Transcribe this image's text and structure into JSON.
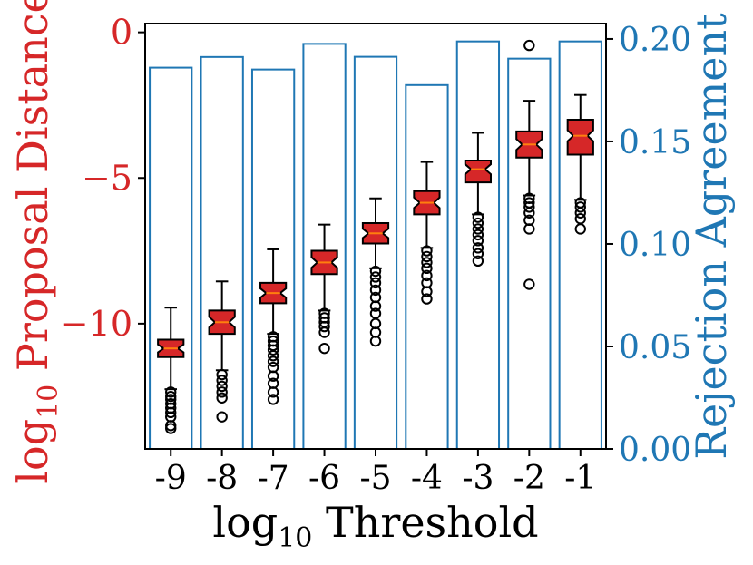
{
  "chart_data": {
    "type": "box",
    "x_label": {
      "base": "log",
      "sub": "10",
      "rest": " Threshold"
    },
    "y_left_label": {
      "base": "log",
      "sub": "10",
      "rest": " Proposal Distance",
      "color": "#d62728"
    },
    "y_right_label": {
      "text": "Rejection Agreement",
      "color": "#1f77b4"
    },
    "categories": [
      "-9",
      "-8",
      "-7",
      "-6",
      "-5",
      "-4",
      "-3",
      "-2",
      "-1"
    ],
    "y_left_ticks": [
      {
        "value": 0,
        "label": "0"
      },
      {
        "value": -5,
        "label": "−5"
      },
      {
        "value": -10,
        "label": "−10"
      }
    ],
    "y_left_lim": [
      -14.3,
      0.3
    ],
    "y_right_ticks": [
      {
        "value": 0.0,
        "label": "0.00"
      },
      {
        "value": 0.05,
        "label": "0.05"
      },
      {
        "value": 0.1,
        "label": "0.10"
      },
      {
        "value": 0.15,
        "label": "0.15"
      },
      {
        "value": 0.2,
        "label": "0.20"
      }
    ],
    "y_right_lim": [
      0.0,
      0.2075
    ],
    "bar_series": {
      "axis": "right",
      "color": "#1f77b4",
      "values": [
        0.186,
        0.1912,
        0.1851,
        0.1976,
        0.1913,
        0.1775,
        0.1988,
        0.1904,
        0.1988
      ]
    },
    "box_series": {
      "axis": "left",
      "box_color": "#d62728",
      "median_color": "#ff7f0e",
      "stats": [
        {
          "whislo": -12.25,
          "q1": -11.15,
          "med": -10.85,
          "q3": -10.55,
          "whishi": -9.45,
          "fliers": [
            -12.35,
            -12.5,
            -12.6,
            -12.75,
            -12.9,
            -13.05,
            -13.2,
            -13.5,
            -13.6
          ]
        },
        {
          "whislo": -11.6,
          "q1": -10.35,
          "med": -9.95,
          "q3": -9.55,
          "whishi": -8.55,
          "fliers": [
            -11.75,
            -11.95,
            -12.15,
            -12.35,
            -12.55,
            -13.2
          ]
        },
        {
          "whislo": -10.35,
          "q1": -9.3,
          "med": -8.95,
          "q3": -8.6,
          "whishi": -7.45,
          "fliers": [
            -10.45,
            -10.6,
            -10.75,
            -10.9,
            -11.1,
            -11.3,
            -11.5,
            -11.8,
            -12.05,
            -12.35,
            -12.6
          ]
        },
        {
          "whislo": -9.55,
          "q1": -8.3,
          "med": -7.9,
          "q3": -7.5,
          "whishi": -6.6,
          "fliers": [
            -9.65,
            -9.8,
            -9.95,
            -10.1,
            -10.3,
            -10.85
          ]
        },
        {
          "whislo": -8.1,
          "q1": -7.25,
          "med": -6.9,
          "q3": -6.55,
          "whishi": -5.7,
          "fliers": [
            -8.2,
            -8.4,
            -8.6,
            -8.85,
            -9.1,
            -9.4,
            -9.65,
            -10.0,
            -10.3,
            -10.6
          ]
        },
        {
          "whislo": -7.4,
          "q1": -6.25,
          "med": -5.85,
          "q3": -5.45,
          "whishi": -4.45,
          "fliers": [
            -7.5,
            -7.7,
            -7.9,
            -8.1,
            -8.35,
            -8.6,
            -8.9,
            -9.15
          ]
        },
        {
          "whislo": -6.25,
          "q1": -5.15,
          "med": -4.7,
          "q3": -4.4,
          "whishi": -3.45,
          "fliers": [
            -6.35,
            -6.55,
            -6.75,
            -6.95,
            -7.15,
            -7.4,
            -7.6,
            -7.85
          ]
        },
        {
          "whislo": -5.6,
          "q1": -4.3,
          "med": -3.85,
          "q3": -3.4,
          "whishi": -2.35,
          "fliers": [
            -5.7,
            -5.85,
            -6.0,
            -6.2,
            -6.45,
            -6.75,
            -8.65,
            -0.45
          ]
        },
        {
          "whislo": -5.75,
          "q1": -4.2,
          "med": -3.55,
          "q3": -3.0,
          "whishi": -2.15,
          "fliers": [
            -5.85,
            -6.0,
            -6.2,
            -6.4,
            -6.75
          ]
        }
      ]
    }
  }
}
